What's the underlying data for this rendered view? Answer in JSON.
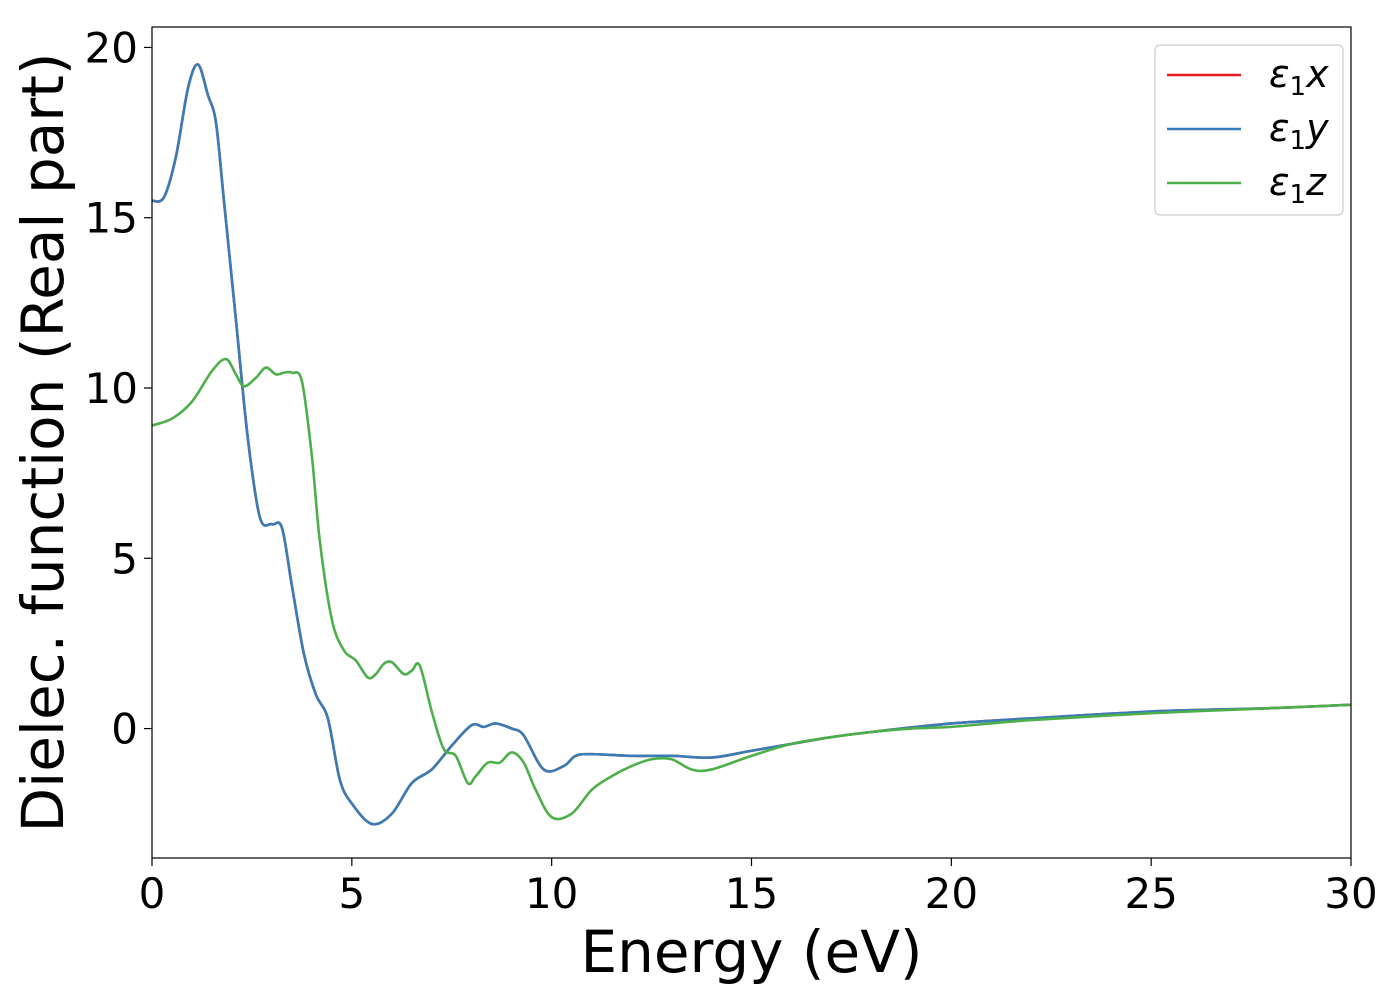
{
  "chart_data": {
    "type": "line",
    "title": "",
    "xlabel": "Energy (eV)",
    "ylabel": "Dielec. function (Real part)",
    "xlim": [
      0,
      30
    ],
    "ylim": [
      -3.8,
      20.6
    ],
    "xticks": [
      0,
      5,
      10,
      15,
      20,
      25,
      30
    ],
    "yticks": [
      0,
      5,
      10,
      15,
      20
    ],
    "grid": false,
    "legend_position": "top-right",
    "series": [
      {
        "name": "ε1x",
        "symbol": "ε",
        "subscript": "1",
        "component": "x",
        "color": "#e41a1c",
        "x": [
          0,
          0.3,
          0.6,
          0.9,
          1.15,
          1.4,
          1.6,
          1.8,
          2.1,
          2.4,
          2.7,
          3.0,
          3.25,
          3.5,
          3.8,
          4.1,
          4.4,
          4.7,
          5.0,
          5.5,
          6.0,
          6.5,
          7.0,
          7.5,
          8.0,
          8.3,
          8.6,
          9.0,
          9.3,
          9.8,
          10.3,
          10.6,
          11.0,
          12.0,
          13.0,
          14.0,
          15.0,
          16.0,
          17.0,
          18.0,
          20.0,
          22.0,
          25.0,
          28.0,
          30.0
        ],
        "y": [
          15.5,
          15.6,
          16.8,
          18.8,
          19.5,
          18.6,
          17.8,
          15.5,
          12.0,
          8.5,
          6.2,
          6.0,
          5.9,
          4.2,
          2.2,
          1.0,
          0.3,
          -1.5,
          -2.2,
          -2.8,
          -2.5,
          -1.6,
          -1.2,
          -0.5,
          0.1,
          0.05,
          0.15,
          0.0,
          -0.2,
          -1.2,
          -1.1,
          -0.8,
          -0.75,
          -0.8,
          -0.8,
          -0.85,
          -0.65,
          -0.45,
          -0.25,
          -0.1,
          0.15,
          0.3,
          0.5,
          0.6,
          0.7
        ]
      },
      {
        "name": "ε1y",
        "symbol": "ε",
        "subscript": "1",
        "component": "y",
        "color": "#377eb8",
        "x": [
          0,
          0.3,
          0.6,
          0.9,
          1.15,
          1.4,
          1.6,
          1.8,
          2.1,
          2.4,
          2.7,
          3.0,
          3.25,
          3.5,
          3.8,
          4.1,
          4.4,
          4.7,
          5.0,
          5.5,
          6.0,
          6.5,
          7.0,
          7.5,
          8.0,
          8.3,
          8.6,
          9.0,
          9.3,
          9.8,
          10.3,
          10.6,
          11.0,
          12.0,
          13.0,
          14.0,
          15.0,
          16.0,
          17.0,
          18.0,
          20.0,
          22.0,
          25.0,
          28.0,
          30.0
        ],
        "y": [
          15.5,
          15.6,
          16.8,
          18.8,
          19.5,
          18.6,
          17.8,
          15.5,
          12.0,
          8.5,
          6.2,
          6.0,
          5.9,
          4.2,
          2.2,
          1.0,
          0.3,
          -1.5,
          -2.2,
          -2.8,
          -2.5,
          -1.6,
          -1.2,
          -0.5,
          0.1,
          0.05,
          0.15,
          0.0,
          -0.2,
          -1.2,
          -1.1,
          -0.8,
          -0.75,
          -0.8,
          -0.8,
          -0.85,
          -0.65,
          -0.45,
          -0.25,
          -0.1,
          0.15,
          0.3,
          0.5,
          0.6,
          0.7
        ]
      },
      {
        "name": "ε1z",
        "symbol": "ε",
        "subscript": "1",
        "component": "z",
        "color": "#4daf4a",
        "x": [
          0,
          0.5,
          1.0,
          1.5,
          1.85,
          2.1,
          2.3,
          2.6,
          2.85,
          3.1,
          3.3,
          3.5,
          3.75,
          4.0,
          4.2,
          4.5,
          4.8,
          5.1,
          5.4,
          5.6,
          5.8,
          6.0,
          6.3,
          6.5,
          6.7,
          7.0,
          7.3,
          7.6,
          7.9,
          8.1,
          8.4,
          8.7,
          9.0,
          9.3,
          9.6,
          10.0,
          10.5,
          11.0,
          11.5,
          12.0,
          12.5,
          13.0,
          13.5,
          14.0,
          15.0,
          16.0,
          17.0,
          18.0,
          19.0,
          20.0,
          22.0,
          25.0,
          28.0,
          30.0
        ],
        "y": [
          8.9,
          9.1,
          9.6,
          10.5,
          10.85,
          10.4,
          10.05,
          10.3,
          10.6,
          10.4,
          10.45,
          10.45,
          10.2,
          8.0,
          5.5,
          3.2,
          2.3,
          2.0,
          1.5,
          1.6,
          1.9,
          1.95,
          1.6,
          1.7,
          1.85,
          0.5,
          -0.6,
          -0.8,
          -1.6,
          -1.4,
          -1.0,
          -1.0,
          -0.7,
          -1.0,
          -1.8,
          -2.6,
          -2.5,
          -1.8,
          -1.4,
          -1.1,
          -0.9,
          -0.9,
          -1.2,
          -1.2,
          -0.8,
          -0.45,
          -0.25,
          -0.1,
          0.0,
          0.05,
          0.25,
          0.45,
          0.6,
          0.7
        ]
      }
    ]
  }
}
